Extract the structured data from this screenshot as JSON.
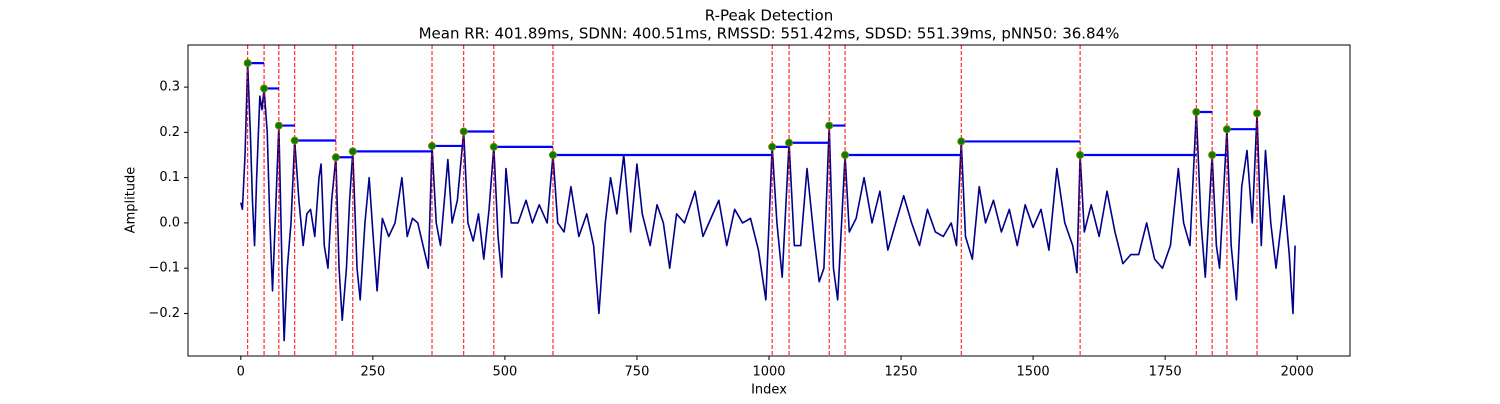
{
  "chart_data": {
    "type": "line",
    "title": "R-Peak Detection",
    "subtitle": "Mean RR: 401.89ms, SDNN: 400.51ms, RMSSD: 551.42ms, SDSD: 551.39ms, pNN50: 36.84%",
    "xlabel": "Index",
    "ylabel": "Amplitude",
    "xlim": [
      -100,
      2100
    ],
    "ylim": [
      -0.294,
      0.393
    ],
    "xticks": [
      0,
      250,
      500,
      750,
      1000,
      1250,
      1500,
      1750,
      2000
    ],
    "yticks": [
      {
        "value": -0.2,
        "label": "−0.2"
      },
      {
        "value": -0.1,
        "label": "−0.1"
      },
      {
        "value": 0,
        "label": "0.0"
      },
      0.1,
      0.2,
      0.3
    ],
    "series": [
      {
        "color": "#00008b",
        "x": [
          0,
          3,
          8,
          13,
          18,
          22,
          26,
          30,
          36,
          40,
          44,
          50,
          55,
          60,
          65,
          72,
          78,
          82,
          88,
          95,
          102,
          110,
          118,
          125,
          132,
          140,
          148,
          152,
          158,
          165,
          172,
          180,
          186,
          192,
          200,
          206,
          212,
          220,
          226,
          235,
          243,
          250,
          258,
          268,
          280,
          292,
          305,
          315,
          325,
          335,
          345,
          355,
          362,
          370,
          378,
          392,
          400,
          410,
          422,
          430,
          440,
          450,
          460,
          470,
          479,
          487,
          494,
          502,
          512,
          525,
          540,
          552,
          565,
          580,
          591,
          600,
          612,
          625,
          640,
          655,
          668,
          678,
          690,
          700,
          712,
          725,
          738,
          750,
          760,
          775,
          788,
          800,
          812,
          825,
          840,
          860,
          875,
          890,
          905,
          920,
          935,
          950,
          965,
          980,
          994,
          1000,
          1006,
          1015,
          1025,
          1038,
          1048,
          1060,
          1072,
          1085,
          1095,
          1104,
          1114,
          1122,
          1130,
          1144,
          1152,
          1165,
          1180,
          1195,
          1210,
          1225,
          1240,
          1255,
          1270,
          1285,
          1300,
          1315,
          1330,
          1345,
          1355,
          1364,
          1372,
          1385,
          1398,
          1410,
          1425,
          1440,
          1455,
          1470,
          1485,
          1500,
          1515,
          1530,
          1545,
          1560,
          1575,
          1583,
          1589,
          1597,
          1610,
          1625,
          1640,
          1655,
          1670,
          1685,
          1700,
          1715,
          1730,
          1745,
          1760,
          1775,
          1785,
          1797,
          1809,
          1818,
          1826,
          1839,
          1847,
          1853,
          1867,
          1875,
          1885,
          1895,
          1905,
          1915,
          1924,
          1932,
          1940,
          1950,
          1960,
          1970,
          1975,
          1985,
          1992,
          1996
        ],
        "values": [
          0.045,
          0.03,
          0.15,
          0.353,
          0.2,
          0.05,
          -0.05,
          0.1,
          0.28,
          0.25,
          0.297,
          0.2,
          0.0,
          -0.15,
          0.0,
          0.215,
          -0.1,
          -0.26,
          -0.1,
          0.0,
          0.182,
          0.05,
          -0.05,
          0.02,
          0.03,
          -0.03,
          0.1,
          0.13,
          -0.05,
          -0.1,
          0.05,
          0.145,
          -0.1,
          -0.215,
          -0.1,
          0.05,
          0.158,
          -0.1,
          -0.17,
          0.0,
          0.1,
          -0.02,
          -0.15,
          0.01,
          -0.03,
          0.0,
          0.1,
          -0.03,
          0.01,
          0.0,
          -0.05,
          -0.1,
          0.17,
          0.0,
          -0.05,
          0.14,
          0.0,
          0.05,
          0.202,
          0.0,
          -0.04,
          0.02,
          -0.08,
          0.03,
          0.168,
          -0.03,
          -0.12,
          0.12,
          0.0,
          0.0,
          0.05,
          0.0,
          0.04,
          0.0,
          0.15,
          0.0,
          -0.02,
          0.08,
          -0.03,
          0.02,
          -0.05,
          -0.2,
          0.0,
          0.1,
          0.02,
          0.15,
          -0.02,
          0.13,
          0.02,
          -0.05,
          0.04,
          0.0,
          -0.1,
          0.02,
          0.0,
          0.07,
          -0.03,
          0.01,
          0.05,
          -0.05,
          0.03,
          0.0,
          0.01,
          -0.06,
          -0.17,
          0.0,
          0.168,
          0.0,
          -0.12,
          0.177,
          -0.05,
          -0.05,
          0.12,
          -0.03,
          -0.13,
          -0.1,
          0.215,
          -0.1,
          -0.17,
          0.15,
          -0.02,
          0.01,
          0.1,
          0.0,
          0.07,
          -0.06,
          0.0,
          0.06,
          0.0,
          -0.05,
          0.03,
          -0.02,
          -0.03,
          0.0,
          -0.05,
          0.18,
          -0.03,
          -0.08,
          0.08,
          0.0,
          0.05,
          -0.02,
          0.03,
          -0.05,
          0.04,
          -0.01,
          0.03,
          -0.06,
          0.12,
          0.0,
          -0.05,
          -0.11,
          0.15,
          -0.02,
          0.04,
          -0.03,
          0.07,
          -0.02,
          -0.09,
          -0.07,
          -0.07,
          0.0,
          -0.08,
          -0.1,
          -0.05,
          0.12,
          0.0,
          -0.05,
          0.245,
          0.0,
          -0.12,
          0.15,
          -0.05,
          -0.1,
          0.207,
          -0.05,
          -0.17,
          0.08,
          0.16,
          0.0,
          0.242,
          -0.05,
          0.16,
          0.0,
          -0.1,
          0.0,
          0.06,
          -0.07,
          -0.2,
          -0.05
        ]
      }
    ],
    "peaks": {
      "x": [
        13,
        44,
        72,
        102,
        180,
        212,
        362,
        422,
        479,
        591,
        1006,
        1038,
        1114,
        1144,
        1364,
        1589,
        1809,
        1839,
        1867,
        1924
      ],
      "values": [
        0.353,
        0.297,
        0.215,
        0.182,
        0.145,
        0.158,
        0.17,
        0.202,
        0.168,
        0.15,
        0.168,
        0.177,
        0.215,
        0.15,
        0.18,
        0.15,
        0.245,
        0.15,
        0.207,
        0.242
      ],
      "color": "#008000",
      "marker_edge_color": "#808000",
      "line_color": "#ff0000",
      "interval_color": "#0000ff"
    }
  }
}
